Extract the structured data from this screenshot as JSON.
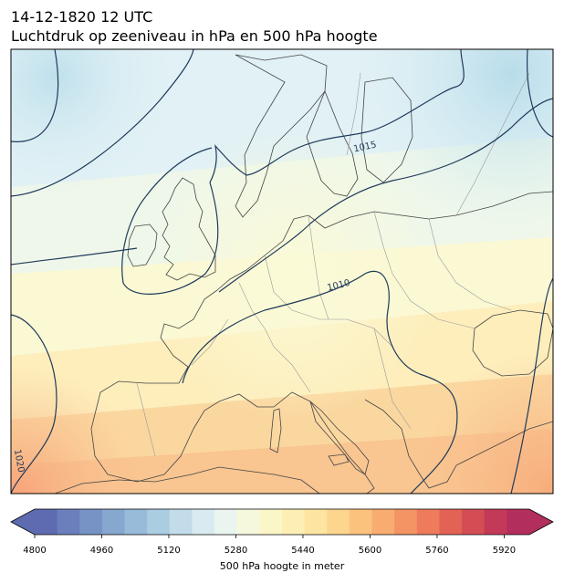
{
  "header": {
    "datetime": "14-12-1820 12 UTC",
    "subtitle": "Luchtdruk op zeeniveau in hPa en 500 hPa hoogte"
  },
  "isobar_labels": [
    "1015",
    "1010",
    "1020"
  ],
  "colorbar": {
    "label": "500 hPa hoogte in meter",
    "min": 4800,
    "max": 5980,
    "ticks": [
      "4800",
      "4960",
      "5120",
      "5280",
      "5440",
      "5600",
      "5760",
      "5920"
    ],
    "colors": [
      "#5e6bb1",
      "#6a7fbc",
      "#7793c6",
      "#86a7cf",
      "#97bbd9",
      "#abcde2",
      "#c2dde9",
      "#d9ebf1",
      "#ebf5f0",
      "#f6f8de",
      "#fbf6c8",
      "#fdefb3",
      "#fde4a0",
      "#fcd58e",
      "#fbc27e",
      "#f8ac70",
      "#f49464",
      "#ed7b5c",
      "#e26356",
      "#d44d55",
      "#c33958",
      "#b22e5c"
    ]
  },
  "colors": {
    "contour": "#1f3a5a",
    "coast": "#444444",
    "border": "#9a9a9a"
  }
}
